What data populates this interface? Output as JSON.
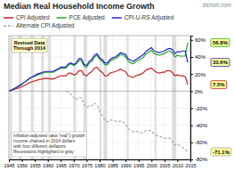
{
  "chart_data": {
    "type": "line",
    "title": "Median Real Household Income Growth",
    "subtitle": "Revised Data\nThrough 2014",
    "annotations": [
      "dshort.com",
      "Inflation-adjusted (aka \"real\") growth",
      "Income chained in 2014 dollars",
      "with four different deflators",
      "Recessions highlighted in gray"
    ],
    "legend": "top",
    "grid": true,
    "data_labels": true,
    "xlim": [
      1945,
      2015
    ],
    "xticks": [
      1945,
      1950,
      1955,
      1960,
      1965,
      1970,
      1975,
      1980,
      1985,
      1990,
      1995,
      2000,
      2005,
      2010,
      2015
    ],
    "ylim": [
      -80,
      65
    ],
    "yticks": [
      {
        "value": -80,
        "label": "-80%"
      },
      {
        "value": -60,
        "label": "-60%"
      },
      {
        "value": -40,
        "label": "-40%"
      },
      {
        "value": -20,
        "label": "-20%"
      },
      {
        "value": 0,
        "label": "0%"
      },
      {
        "value": 20,
        "label": "20%"
      },
      {
        "value": 40,
        "label": "40%"
      },
      {
        "value": 60,
        "label": "60%"
      }
    ],
    "bands": [
      [
        1945.5,
        1946.2
      ],
      [
        1948.8,
        1949.8
      ],
      [
        1953.5,
        1954.5
      ],
      [
        1957.5,
        1958.5
      ],
      [
        1960.2,
        1961.2
      ],
      [
        1969.9,
        1970.9
      ],
      [
        1973.8,
        1975.2
      ],
      [
        1980.0,
        1980.7
      ],
      [
        1981.5,
        1982.9
      ],
      [
        1990.5,
        1991.2
      ],
      [
        2001.2,
        2001.9
      ],
      [
        2007.9,
        2009.5
      ]
    ],
    "series": [
      {
        "name": "CPI Adjusted",
        "color": "#cc2222",
        "line_style": "solid",
        "x": [
          1945,
          1947,
          1950,
          1953,
          1956,
          1959,
          1962,
          1965,
          1967,
          1968,
          1969,
          1970,
          1971,
          1972,
          1973,
          1974,
          1975,
          1976,
          1977,
          1978,
          1979,
          1980,
          1981,
          1982,
          1983,
          1984,
          1985,
          1986,
          1987,
          1988,
          1989,
          1990,
          1991,
          1992,
          1993,
          1994,
          1995,
          1996,
          1997,
          1998,
          1999,
          2000,
          2001,
          2002,
          2003,
          2004,
          2005,
          2006,
          2007,
          2008,
          2009,
          2010,
          2011,
          2012,
          2013,
          2014
        ],
        "values": [
          0,
          2,
          5,
          10,
          13,
          15,
          14,
          18,
          18,
          21,
          21,
          19,
          20,
          24,
          24,
          19,
          18,
          21,
          23,
          27,
          28,
          24,
          22,
          18,
          18,
          21,
          22,
          23,
          24,
          26,
          24,
          23,
          18,
          17,
          16,
          18,
          19,
          20,
          22,
          25,
          26,
          27,
          24,
          22,
          21,
          22,
          22,
          24,
          24,
          22,
          18,
          19,
          18,
          18,
          17,
          7.5
        ],
        "value_labels": [
          null,
          null,
          null,
          null,
          null,
          null,
          null,
          null,
          null,
          null,
          null,
          null,
          null,
          null,
          null,
          null,
          null,
          null,
          null,
          null,
          null,
          null,
          null,
          null,
          null,
          null,
          null,
          null,
          null,
          null,
          null,
          null,
          null,
          null,
          null,
          null,
          null,
          null,
          null,
          null,
          null,
          null,
          null,
          null,
          null,
          null,
          null,
          null,
          null,
          null,
          null,
          null,
          null,
          null,
          null,
          "7.5%"
        ]
      },
      {
        "name": "PCE Adjusted",
        "color": "#22aa22",
        "line_style": "solid",
        "x": [
          1945,
          1947,
          1950,
          1953,
          1956,
          1959,
          1962,
          1965,
          1967,
          1968,
          1969,
          1970,
          1971,
          1972,
          1973,
          1974,
          1975,
          1976,
          1977,
          1978,
          1979,
          1980,
          1981,
          1982,
          1983,
          1984,
          1985,
          1986,
          1987,
          1988,
          1989,
          1990,
          1991,
          1992,
          1993,
          1994,
          1995,
          1996,
          1997,
          1998,
          1999,
          2000,
          2001,
          2002,
          2003,
          2004,
          2005,
          2006,
          2007,
          2008,
          2009,
          2010,
          2011,
          2012,
          2013,
          2014
        ],
        "values": [
          0,
          3,
          8,
          15,
          19,
          22,
          22,
          27,
          27,
          31,
          32,
          30,
          32,
          36,
          36,
          29,
          28,
          33,
          35,
          40,
          42,
          37,
          35,
          31,
          31,
          35,
          37,
          38,
          40,
          43,
          42,
          40,
          35,
          33,
          32,
          35,
          36,
          38,
          40,
          44,
          46,
          48,
          44,
          43,
          42,
          43,
          44,
          46,
          47,
          45,
          40,
          42,
          41,
          41,
          41,
          56.8
        ],
        "value_labels": [
          null,
          null,
          null,
          null,
          null,
          null,
          null,
          null,
          null,
          null,
          null,
          null,
          null,
          null,
          null,
          null,
          null,
          null,
          null,
          null,
          null,
          null,
          null,
          null,
          null,
          null,
          null,
          null,
          null,
          null,
          null,
          null,
          null,
          null,
          null,
          null,
          null,
          null,
          null,
          null,
          null,
          null,
          null,
          null,
          null,
          null,
          null,
          null,
          null,
          null,
          null,
          null,
          null,
          null,
          null,
          "56.8%"
        ]
      },
      {
        "name": "CPI-U-RS Adjusted",
        "color": "#2222cc",
        "line_style": "solid",
        "x": [
          1945,
          1947,
          1950,
          1953,
          1956,
          1959,
          1962,
          1965,
          1967,
          1968,
          1969,
          1970,
          1971,
          1972,
          1973,
          1974,
          1975,
          1976,
          1977,
          1978,
          1979,
          1980,
          1981,
          1982,
          1983,
          1984,
          1985,
          1986,
          1987,
          1988,
          1989,
          1990,
          1991,
          1992,
          1993,
          1994,
          1995,
          1996,
          1997,
          1998,
          1999,
          2000,
          2001,
          2002,
          2003,
          2004,
          2005,
          2006,
          2007,
          2008,
          2009,
          2010,
          2011,
          2012,
          2013,
          2014
        ],
        "values": [
          0,
          3,
          8,
          15,
          20,
          23,
          23,
          28,
          28,
          32,
          33,
          31,
          33,
          38,
          38,
          31,
          30,
          35,
          37,
          42,
          44,
          39,
          37,
          33,
          33,
          37,
          39,
          40,
          42,
          45,
          44,
          43,
          38,
          36,
          35,
          37,
          39,
          41,
          43,
          47,
          49,
          51,
          47,
          46,
          45,
          46,
          47,
          49,
          50,
          49,
          44,
          46,
          46,
          47,
          47,
          33.6
        ],
        "value_labels": [
          null,
          null,
          null,
          null,
          null,
          null,
          null,
          null,
          null,
          null,
          null,
          null,
          null,
          null,
          null,
          null,
          null,
          null,
          null,
          null,
          null,
          null,
          null,
          null,
          null,
          null,
          null,
          null,
          null,
          null,
          null,
          null,
          null,
          null,
          null,
          null,
          null,
          null,
          null,
          null,
          null,
          null,
          null,
          null,
          null,
          null,
          null,
          null,
          null,
          null,
          null,
          null,
          null,
          null,
          null,
          "33.6%"
        ]
      },
      {
        "name": "Alternate CPI Adjusted",
        "color": "#aaaaaa",
        "line_style": "dashed",
        "x": [
          1967,
          1968,
          1969,
          1970,
          1971,
          1972,
          1973,
          1974,
          1975,
          1976,
          1977,
          1978,
          1979,
          1980,
          1981,
          1982,
          1983,
          1984,
          1985,
          1986,
          1987,
          1988,
          1989,
          1990,
          1991,
          1992,
          1993,
          1994,
          1995,
          1996,
          1997,
          1998,
          1999,
          2000,
          2001,
          2002,
          2003,
          2004,
          2005,
          2006,
          2007,
          2008,
          2009,
          2010,
          2011,
          2012,
          2013,
          2014
        ],
        "values": [
          0,
          -2,
          -4,
          -8,
          -10,
          -7,
          -8,
          -16,
          -19,
          -17,
          -17,
          -14,
          -16,
          -24,
          -28,
          -34,
          -36,
          -34,
          -34,
          -35,
          -36,
          -35,
          -36,
          -39,
          -44,
          -46,
          -48,
          -47,
          -48,
          -49,
          -48,
          -46,
          -46,
          -47,
          -50,
          -52,
          -53,
          -54,
          -55,
          -55,
          -55,
          -58,
          -63,
          -62,
          -64,
          -66,
          -68,
          -71.1
        ],
        "value_labels": [
          null,
          null,
          null,
          null,
          null,
          null,
          null,
          null,
          null,
          null,
          null,
          null,
          null,
          null,
          null,
          null,
          null,
          null,
          null,
          null,
          null,
          null,
          null,
          null,
          null,
          null,
          null,
          null,
          null,
          null,
          null,
          null,
          null,
          null,
          null,
          null,
          null,
          null,
          null,
          null,
          null,
          null,
          null,
          null,
          null,
          null,
          null,
          "-71.1%"
        ]
      }
    ]
  }
}
